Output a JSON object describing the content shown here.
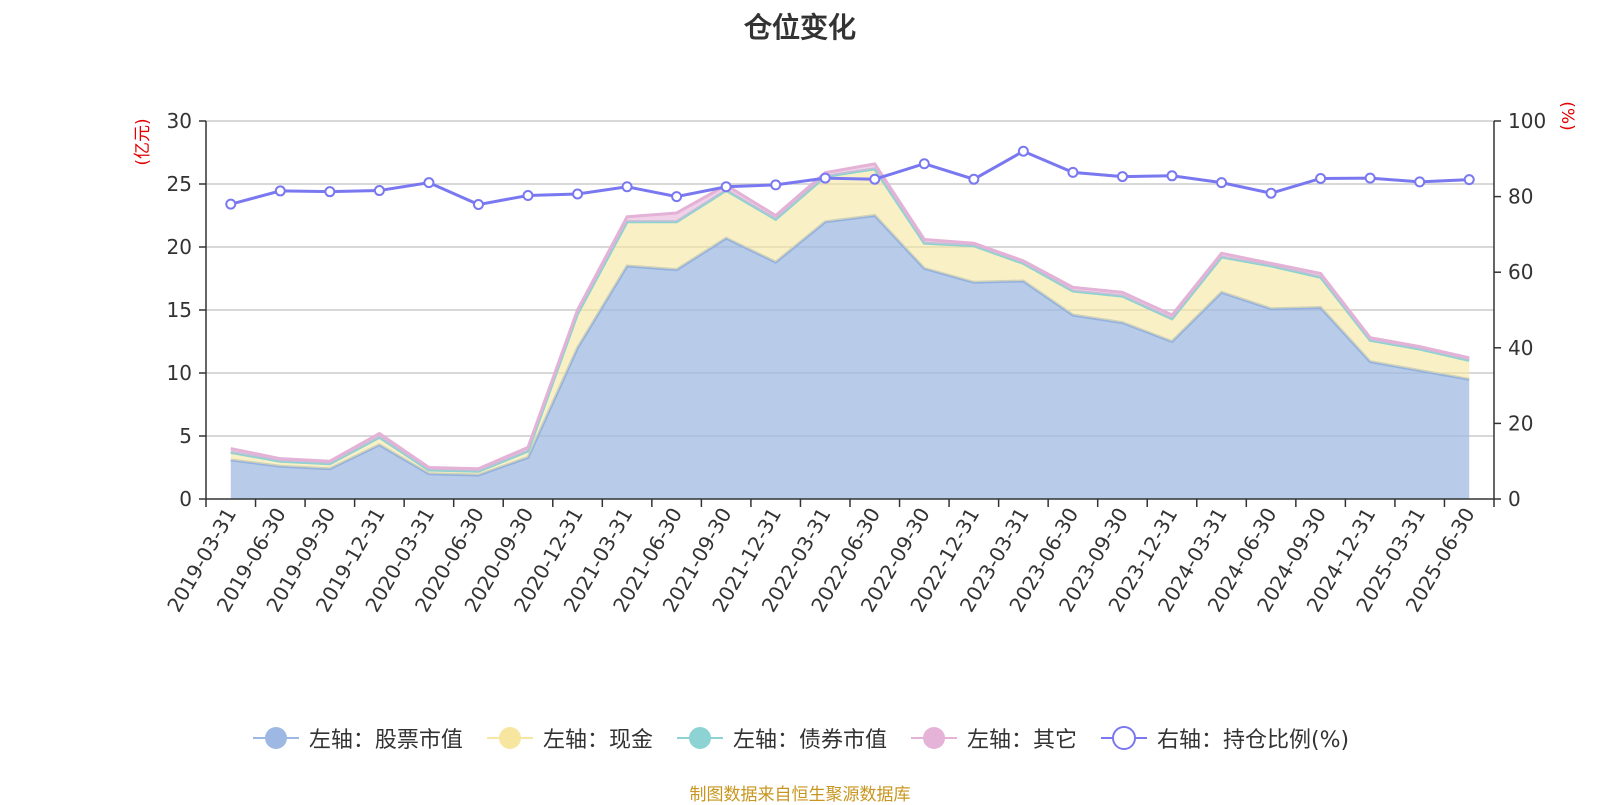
{
  "colors": {
    "stock": "#9db8e2",
    "cash": "#f7e6a0",
    "bond": "#8dd3d3",
    "other": "#e6b3d8",
    "ratio": "#7a78f0",
    "axis_unit": "#e00000",
    "source": "#c8961e"
  },
  "legend": [
    {
      "label": "左轴：股票市值",
      "color": "#9db8e2",
      "icon": "filled-circle-line"
    },
    {
      "label": "左轴：现金",
      "color": "#f7e6a0",
      "icon": "filled-circle-line"
    },
    {
      "label": "左轴：债券市值",
      "color": "#8dd3d3",
      "icon": "filled-circle-line"
    },
    {
      "label": "左轴：其它",
      "color": "#e6b3d8",
      "icon": "filled-circle-line"
    },
    {
      "label": "右轴：持仓比例(%)",
      "color": "#7a78f0",
      "icon": "hollow-circle-line"
    }
  ],
  "source": "制图数据来自恒生聚源数据库",
  "chart_data": {
    "type": "area",
    "title": "仓位变化",
    "left_axis": {
      "unit": "(亿元)",
      "ylim": [
        0,
        30
      ],
      "ticks": [
        "0",
        "5",
        "10",
        "15",
        "20",
        "25",
        "30"
      ]
    },
    "right_axis": {
      "unit": "(%)",
      "ylim": [
        0,
        100
      ],
      "ticks": [
        "0",
        "20",
        "40",
        "60",
        "80",
        "100"
      ]
    },
    "grid": true,
    "legend_position": "bottom",
    "x": [
      "2019-03-31",
      "2019-06-30",
      "2019-09-30",
      "2019-12-31",
      "2020-03-31",
      "2020-06-30",
      "2020-09-30",
      "2020-12-31",
      "2021-03-31",
      "2021-06-30",
      "2021-09-30",
      "2021-12-31",
      "2022-03-31",
      "2022-06-30",
      "2022-09-30",
      "2022-12-31",
      "2023-03-31",
      "2023-06-30",
      "2023-09-30",
      "2023-12-31",
      "2024-03-31",
      "2024-06-30",
      "2024-09-30",
      "2024-12-31",
      "2025-03-31",
      "2025-06-30"
    ],
    "series": [
      {
        "name": "左轴：股票市值",
        "axis": "left",
        "stacked": true,
        "values": [
          3.1,
          2.6,
          2.4,
          4.3,
          2.0,
          1.9,
          3.3,
          12.0,
          18.5,
          18.2,
          20.7,
          18.8,
          22.0,
          22.5,
          18.3,
          17.2,
          17.3,
          14.6,
          14.0,
          12.5,
          16.4,
          15.1,
          15.2,
          10.9,
          10.2,
          9.5
        ]
      },
      {
        "name": "左轴：现金",
        "axis": "left",
        "stacked": true,
        "values": [
          0.6,
          0.4,
          0.4,
          0.6,
          0.3,
          0.3,
          0.5,
          2.7,
          3.5,
          3.8,
          3.8,
          3.4,
          3.6,
          3.7,
          2.0,
          2.9,
          1.4,
          1.9,
          2.1,
          1.8,
          2.8,
          3.4,
          2.4,
          1.7,
          1.7,
          1.5
        ]
      },
      {
        "name": "左轴：债券市值",
        "axis": "left",
        "stacked": true,
        "values": [
          0,
          0,
          0,
          0,
          0,
          0,
          0,
          0,
          0,
          0,
          0,
          0,
          0,
          0,
          0,
          0,
          0,
          0,
          0,
          0,
          0,
          0,
          0,
          0,
          0,
          0
        ]
      },
      {
        "name": "左轴：其它",
        "axis": "left",
        "stacked": true,
        "values": [
          0.3,
          0.2,
          0.2,
          0.3,
          0.2,
          0.2,
          0.3,
          0.3,
          0.4,
          0.7,
          0.4,
          0.3,
          0.3,
          0.4,
          0.3,
          0.2,
          0.2,
          0.3,
          0.3,
          0.3,
          0.3,
          0.2,
          0.3,
          0.2,
          0.2,
          0.2
        ]
      },
      {
        "name": "右轴：持仓比例(%)",
        "axis": "right",
        "type": "line",
        "values": [
          78.0,
          81.5,
          81.3,
          81.6,
          83.7,
          77.9,
          80.3,
          80.7,
          82.6,
          80.0,
          82.6,
          83.1,
          84.9,
          84.6,
          88.7,
          84.6,
          92.0,
          86.4,
          85.3,
          85.5,
          83.7,
          80.9,
          84.8,
          84.9,
          83.9,
          84.5
        ]
      }
    ]
  }
}
